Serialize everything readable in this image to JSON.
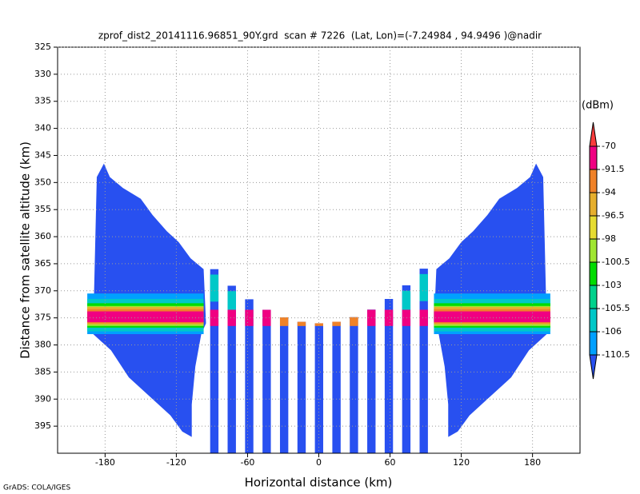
{
  "chart_data": {
    "type": "heatmap",
    "title": "zprof_dist2_20141116.96851_90Y.grd  scan # 7226  (Lat, Lon)=(-7.24984 , 94.9496 )@nadir",
    "x_label": "Horizontal distance (km)",
    "y_label": "Distance from satellite altitude (km)",
    "footer": "GrADS: COLA/IGES",
    "xlim": [
      -220,
      220
    ],
    "xticks": [
      -180,
      -120,
      -60,
      0,
      60,
      120,
      180
    ],
    "ylim": [
      400,
      325
    ],
    "yticks": [
      325,
      330,
      335,
      340,
      345,
      350,
      355,
      360,
      365,
      370,
      375,
      380,
      385,
      390,
      395
    ],
    "grid": true,
    "colorbar": {
      "title": "(dBm)",
      "levels": [
        -70,
        -91.5,
        -94,
        -96.5,
        -98,
        -100.5,
        -103,
        -105.5,
        -106,
        -110.5
      ],
      "colors": [
        "#fa3c3c",
        "#f00082",
        "#f08228",
        "#e6af2d",
        "#e6dc32",
        "#a0e632",
        "#00dc00",
        "#00d28c",
        "#00c8c8",
        "#00a0ff",
        "#2850f0"
      ]
    }
  }
}
